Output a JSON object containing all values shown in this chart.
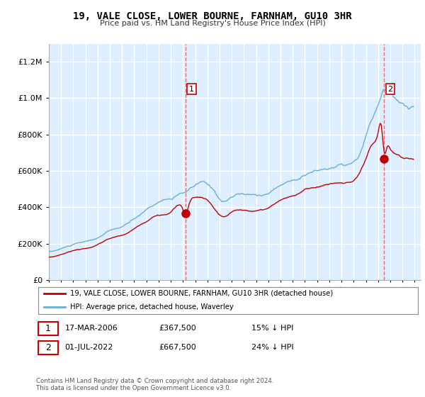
{
  "title": "19, VALE CLOSE, LOWER BOURNE, FARNHAM, GU10 3HR",
  "subtitle": "Price paid vs. HM Land Registry's House Price Index (HPI)",
  "legend_line1": "19, VALE CLOSE, LOWER BOURNE, FARNHAM, GU10 3HR (detached house)",
  "legend_line2": "HPI: Average price, detached house, Waverley",
  "annotation1_text": "17-MAR-2006     £367,500     15% ↓ HPI",
  "annotation2_text": "01-JUL-2022     £667,500     24% ↓ HPI",
  "purchase1_x": 2006.21,
  "purchase1_y": 367500,
  "purchase2_x": 2022.5,
  "purchase2_y": 667500,
  "hpi_color": "#6baed6",
  "price_color": "#c00000",
  "dashed_color": "#e06060",
  "fill_color": "#ddeeff",
  "ylim": [
    0,
    1300000
  ],
  "ytick_max": 1200000,
  "xlim_start": 1995,
  "xlim_end": 2025.5,
  "footer": "Contains HM Land Registry data © Crown copyright and database right 2024.\nThis data is licensed under the Open Government Licence v3.0."
}
